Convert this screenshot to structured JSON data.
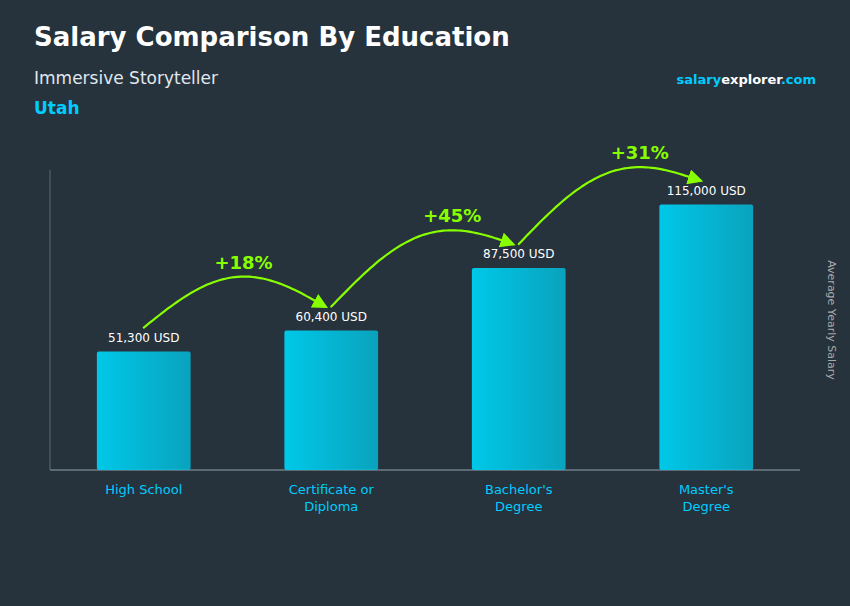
{
  "chart_data": {
    "type": "bar",
    "title": "Salary Comparison By Education",
    "subtitle": "Immersive Storyteller",
    "location": "Utah",
    "watermark": [
      {
        "text": "salary",
        "color": "#00ccff"
      },
      {
        "text": "explorer",
        "color": "#ffffff"
      },
      {
        "text": ".com",
        "color": "#00ccff"
      }
    ],
    "y_label": "Average Yearly Salary",
    "categories": [
      "High School",
      "Certificate or\nDiploma",
      "Bachelor's\nDegree",
      "Master's\nDegree"
    ],
    "values": [
      51300,
      60400,
      87500,
      115000
    ],
    "value_labels": [
      "51,300 USD",
      "60,400 USD",
      "87,500 USD",
      "115,000 USD"
    ],
    "data_labels": true,
    "annotations": [
      {
        "text": "+18%",
        "color": "#88ff00"
      },
      {
        "text": "+45%",
        "color": "#88ff00"
      },
      {
        "text": "+31%",
        "color": "#88ff00"
      }
    ],
    "color": "#00c8e8",
    "ylim": [
      0,
      130000
    ],
    "tick_labels": false,
    "grid": false
  }
}
